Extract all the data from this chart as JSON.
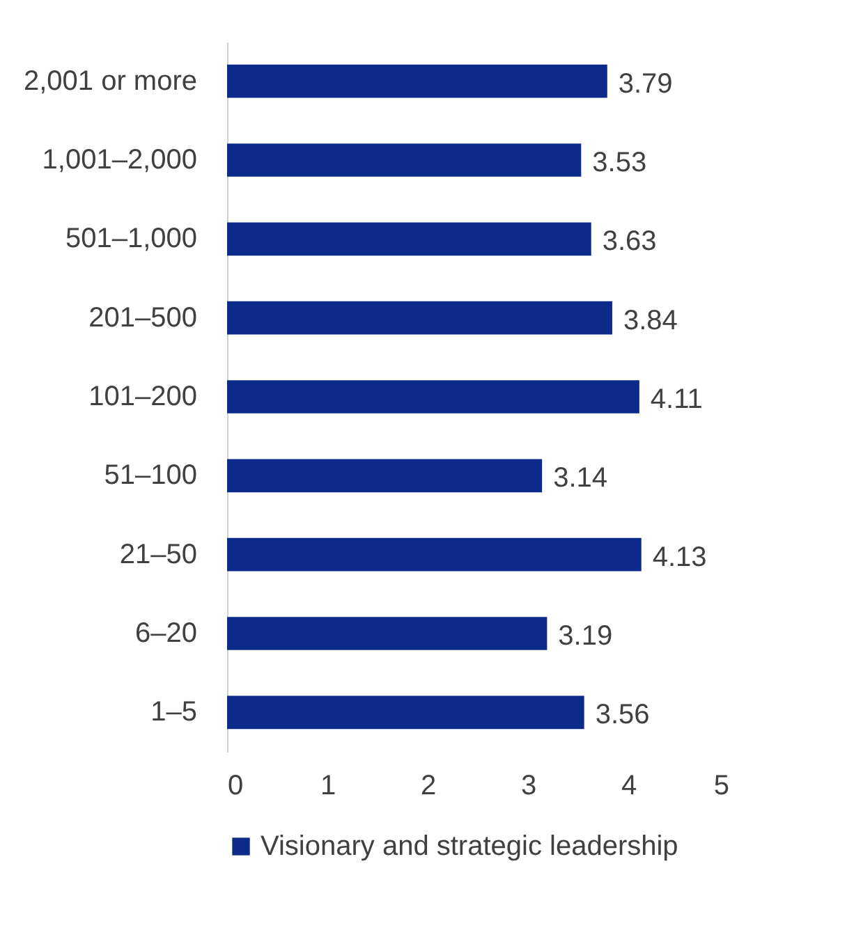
{
  "chart_data": {
    "type": "bar",
    "orientation": "horizontal",
    "categories": [
      "2,001 or more",
      "1,001–2,000",
      "501–1,000",
      "201–500",
      "101–200",
      "51–100",
      "21–50",
      "6–20",
      "1–5"
    ],
    "series": [
      {
        "name": "Visionary and strategic leadership",
        "color": "#0b2a8a",
        "values": [
          3.79,
          3.53,
          3.63,
          3.84,
          4.11,
          3.14,
          4.13,
          3.19,
          3.56
        ]
      }
    ],
    "xlim": [
      0,
      5
    ],
    "xticks": [
      0,
      1,
      2,
      3,
      4,
      5
    ],
    "data_labels": true,
    "legend": "bottom",
    "grid": false
  }
}
